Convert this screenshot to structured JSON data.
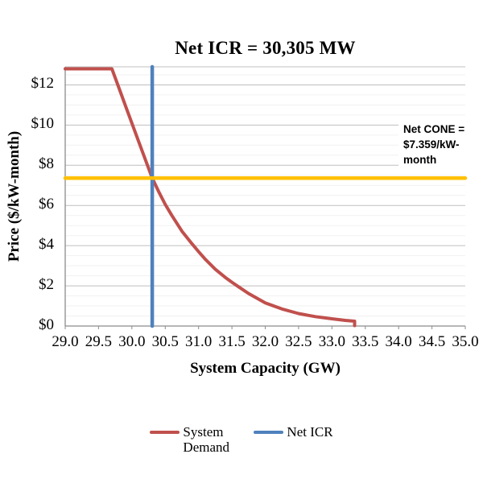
{
  "chart": {
    "title": "Net ICR = 30,305 MW",
    "x_axis_title": "System Capacity (GW)",
    "y_axis_title": "Price ($/kW-month)",
    "annotation": {
      "lines": [
        "Net CONE =",
        "$7.359/kW-",
        "month"
      ]
    },
    "legend": [
      {
        "label": "System Demand",
        "color": "#C0504D"
      },
      {
        "label": "Net ICR",
        "color": "#4F81BD"
      }
    ]
  },
  "chart_data": {
    "type": "line",
    "title": "Net ICR = 30,305 MW",
    "xlabel": "System Capacity (GW)",
    "ylabel": "Price ($/kW-month)",
    "xlim": [
      29.0,
      35.0
    ],
    "ylim": [
      0,
      12.9
    ],
    "grid": true,
    "y_minor_step": 0.5,
    "net_icr_gw": 30.305,
    "net_cone_price": 7.359,
    "x_ticks": [
      {
        "v": 29.0,
        "label": "29.0"
      },
      {
        "v": 29.5,
        "label": "29.5"
      },
      {
        "v": 30.0,
        "label": "30.0"
      },
      {
        "v": 30.5,
        "label": "30.5"
      },
      {
        "v": 31.0,
        "label": "31.0"
      },
      {
        "v": 31.5,
        "label": "31.5"
      },
      {
        "v": 32.0,
        "label": "32.0"
      },
      {
        "v": 32.5,
        "label": "32.5"
      },
      {
        "v": 33.0,
        "label": "33.0"
      },
      {
        "v": 33.5,
        "label": "33.5"
      },
      {
        "v": 34.0,
        "label": "34.0"
      },
      {
        "v": 34.5,
        "label": "34.5"
      },
      {
        "v": 35.0,
        "label": "35.0"
      }
    ],
    "y_ticks": [
      {
        "v": 0,
        "label": "$0"
      },
      {
        "v": 2,
        "label": "$2"
      },
      {
        "v": 4,
        "label": "$4"
      },
      {
        "v": 6,
        "label": "$6"
      },
      {
        "v": 8,
        "label": "$8"
      },
      {
        "v": 10,
        "label": "$10"
      },
      {
        "v": 12,
        "label": "$12"
      }
    ],
    "colors": {
      "grid_major": "#BFBFBF",
      "grid_minor": "#F1F1F1",
      "axis": "#8C8C8C"
    },
    "series": [
      {
        "name": "System Demand",
        "color": "#C0504D",
        "width": 4,
        "points": [
          [
            29.0,
            12.8
          ],
          [
            29.7,
            12.8
          ],
          [
            29.8,
            11.9
          ],
          [
            29.9,
            11.0
          ],
          [
            30.0,
            10.1
          ],
          [
            30.1,
            9.2
          ],
          [
            30.2,
            8.3
          ],
          [
            30.305,
            7.36
          ],
          [
            30.4,
            6.7
          ],
          [
            30.5,
            6.05
          ],
          [
            30.6,
            5.5
          ],
          [
            30.75,
            4.72
          ],
          [
            30.9,
            4.1
          ],
          [
            31.0,
            3.7
          ],
          [
            31.1,
            3.32
          ],
          [
            31.25,
            2.83
          ],
          [
            31.4,
            2.42
          ],
          [
            31.5,
            2.18
          ],
          [
            31.6,
            1.95
          ],
          [
            31.75,
            1.62
          ],
          [
            32.0,
            1.15
          ],
          [
            32.25,
            0.85
          ],
          [
            32.5,
            0.62
          ],
          [
            32.75,
            0.47
          ],
          [
            33.0,
            0.36
          ],
          [
            33.2,
            0.28
          ],
          [
            33.34,
            0.24
          ],
          [
            33.34,
            0.02
          ]
        ]
      },
      {
        "name": "Net ICR",
        "color": "#4F81BD",
        "width": 4.5,
        "points": [
          [
            30.305,
            0
          ],
          [
            30.305,
            12.9
          ]
        ]
      },
      {
        "name": "Net CONE",
        "color": "#FFC000",
        "width": 4.5,
        "points": [
          [
            29.0,
            7.359
          ],
          [
            35.0,
            7.359
          ]
        ]
      }
    ]
  }
}
